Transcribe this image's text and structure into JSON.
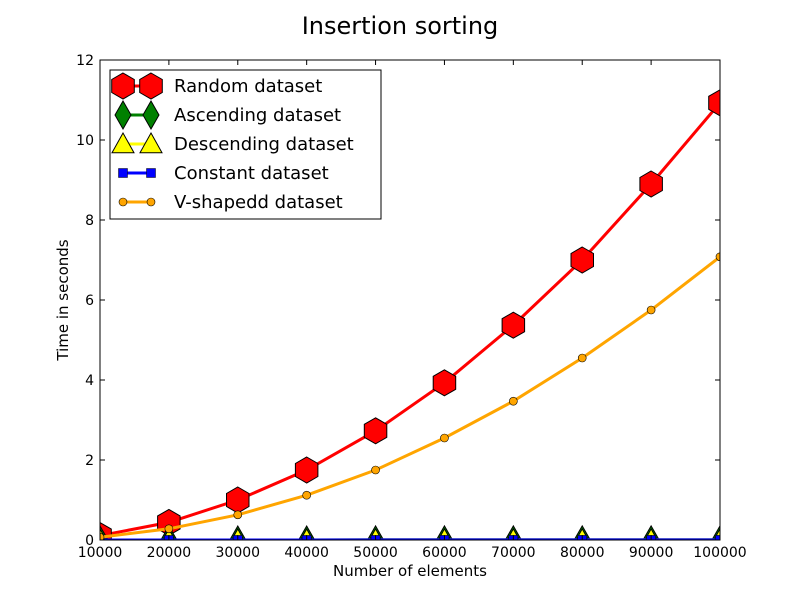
{
  "chart_data": {
    "type": "line",
    "title": "Insertion sorting",
    "xlabel": "Number of elements",
    "ylabel": "Time in seconds",
    "xlim": [
      10000,
      100000
    ],
    "ylim": [
      0,
      12
    ],
    "x": [
      10000,
      20000,
      30000,
      40000,
      50000,
      60000,
      70000,
      80000,
      90000,
      100000
    ],
    "xticks": [
      "10000",
      "20000",
      "30000",
      "40000",
      "50000",
      "60000",
      "70000",
      "80000",
      "90000",
      "100000"
    ],
    "yticks": [
      "0",
      "2",
      "4",
      "6",
      "8",
      "10",
      "12"
    ],
    "ytick_values": [
      0,
      2,
      4,
      6,
      8,
      10,
      12
    ],
    "grid": false,
    "legend_position": "top-left",
    "series": [
      {
        "name": "Random dataset",
        "color": "#ff0000",
        "marker": "hexagon",
        "values": [
          0.11,
          0.44,
          1.0,
          1.75,
          2.73,
          3.93,
          5.37,
          7.0,
          8.9,
          10.93
        ]
      },
      {
        "name": "Ascending dataset",
        "color": "#008000",
        "marker": "thin-diamond",
        "values": [
          0.001,
          0.001,
          0.001,
          0.001,
          0.002,
          0.002,
          0.002,
          0.002,
          0.002,
          0.003
        ]
      },
      {
        "name": "Descending dataset",
        "color": "#ffff00",
        "marker": "triangle",
        "values": [
          0.001,
          0.001,
          0.001,
          0.001,
          0.002,
          0.002,
          0.002,
          0.002,
          0.002,
          0.003
        ]
      },
      {
        "name": "Constant dataset",
        "color": "#0000ff",
        "marker": "square",
        "values": [
          0.001,
          0.001,
          0.001,
          0.001,
          0.002,
          0.002,
          0.002,
          0.002,
          0.002,
          0.003
        ]
      },
      {
        "name": "V-shapedd dataset",
        "color": "#ffa500",
        "marker": "circle",
        "values": [
          0.07,
          0.28,
          0.63,
          1.12,
          1.75,
          2.55,
          3.47,
          4.55,
          5.75,
          7.08
        ]
      }
    ]
  }
}
